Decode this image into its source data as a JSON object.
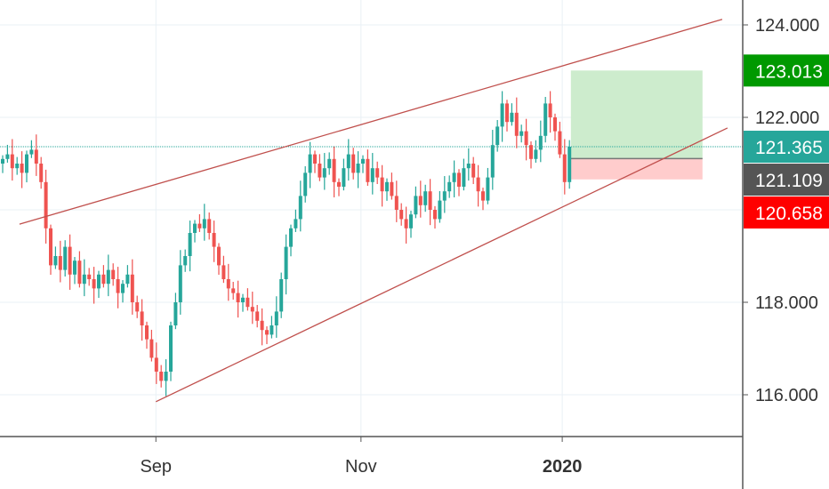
{
  "chart_data": {
    "type": "candlestick",
    "title": "",
    "y_ticks": [
      116,
      118,
      120,
      122,
      124
    ],
    "y_tick_labels": [
      "116.000",
      "118.000",
      "120.000",
      "122.000",
      "124.000"
    ],
    "ylim": [
      114.9,
      124.5
    ],
    "x_ticks": [
      {
        "label": "Sep",
        "index": 31.9,
        "bold": false
      },
      {
        "label": "Nov",
        "index": 74.6,
        "bold": false
      },
      {
        "label": "2020",
        "index": 116.5,
        "bold": true
      }
    ],
    "first_open": 121.0,
    "closes": [
      121.1,
      121.2,
      120.9,
      121.0,
      120.8,
      121.2,
      121.3,
      121.0,
      120.6,
      119.6,
      118.8,
      119.0,
      118.7,
      119.2,
      118.6,
      118.9,
      118.4,
      118.6,
      118.5,
      118.3,
      118.6,
      118.4,
      118.7,
      118.5,
      118.2,
      118.4,
      118.6,
      118.0,
      117.8,
      117.5,
      117.2,
      116.8,
      116.5,
      116.3,
      116.5,
      117.5,
      118.0,
      118.8,
      119.0,
      119.5,
      119.7,
      119.6,
      119.8,
      119.5,
      119.2,
      118.8,
      118.5,
      118.3,
      118.2,
      118.0,
      118.1,
      117.9,
      117.8,
      117.6,
      117.4,
      117.3,
      117.5,
      117.8,
      118.5,
      119.2,
      119.6,
      119.8,
      120.3,
      120.8,
      121.2,
      121.0,
      120.7,
      120.9,
      121.1,
      120.6,
      120.5,
      120.9,
      121.2,
      120.8,
      121.0,
      121.1,
      120.6,
      120.9,
      120.7,
      120.4,
      120.6,
      120.3,
      120.0,
      119.8,
      119.6,
      119.9,
      120.3,
      120.1,
      120.4,
      120.0,
      119.8,
      120.2,
      120.4,
      120.6,
      120.8,
      120.5,
      120.9,
      121.0,
      120.7,
      120.4,
      120.2,
      120.7,
      121.4,
      121.8,
      122.3,
      121.9,
      122.1,
      121.6,
      121.7,
      121.4,
      121.1,
      121.3,
      121.6,
      122.3,
      122.0,
      121.7,
      121.2,
      120.6,
      121.365
    ],
    "trend_lines": [
      {
        "name": "upper-channel",
        "from": [
          3.5,
          119.69
        ],
        "to": [
          149.8,
          124.12
        ],
        "color": "#c0504d"
      },
      {
        "name": "lower-channel",
        "from": [
          31.9,
          115.85
        ],
        "to": [
          150.9,
          121.77
        ],
        "color": "#c0504d"
      }
    ],
    "position": {
      "type": "long",
      "start_index": 118.3,
      "end_index": 145.7,
      "target": 123.013,
      "entry": 121.109,
      "stop": 120.658
    },
    "current_price": 121.365,
    "price_labels": [
      {
        "value": 123.013,
        "text": "123.013",
        "color": "#009900"
      },
      {
        "value": 121.365,
        "text": "121.365",
        "color": "#26a69a"
      },
      {
        "value": 121.109,
        "text": "121.109",
        "color": "#555555"
      },
      {
        "value": 120.658,
        "text": "120.658",
        "color": "#ff0000"
      }
    ],
    "colors": {
      "up": "#26a69a",
      "down": "#ef5350",
      "grid": "#e9f0f5",
      "axis": "#555555",
      "target_fill": "#cdeccd",
      "stop_fill": "#ffcccc"
    }
  }
}
